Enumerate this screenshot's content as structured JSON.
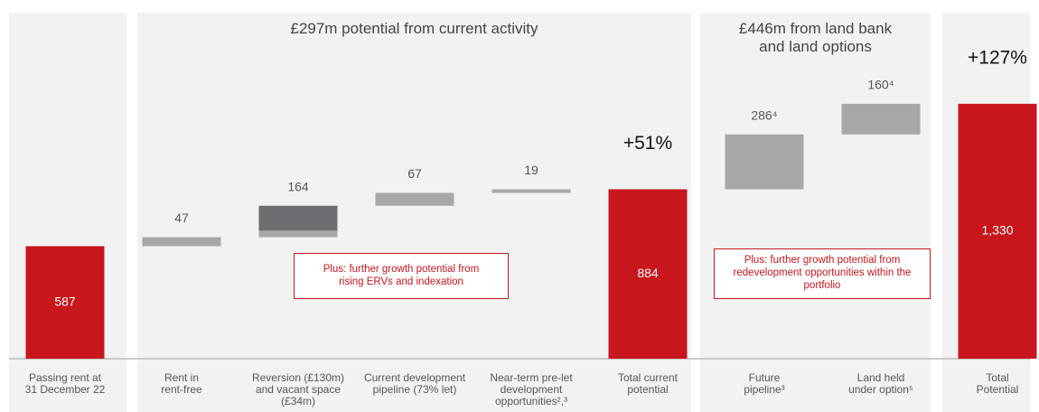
{
  "chart_data": {
    "type": "waterfall",
    "groups": [
      {
        "title": "£297m potential from current activity"
      },
      {
        "title": "£446m from land bank\nand land options"
      }
    ],
    "categories": [
      "Passing rent at\n31 December 22",
      "Rent in\nrent-free",
      "Reversion (£130m)\nand  vacant space\n(£34m)",
      "Current development\npipeline (73% let)",
      "Near-term pre-let\ndevelopment\nopportunities²,³",
      "Total current\npotential",
      "Future\npipeline³",
      "Land held\nunder option⁵",
      "Total\nPotential"
    ],
    "bar_kinds": [
      "total",
      "step",
      "step",
      "step",
      "step",
      "total",
      "step",
      "step",
      "total"
    ],
    "values": [
      587,
      47,
      164,
      67,
      19,
      884,
      286,
      160,
      1330
    ],
    "value_labels": [
      "587",
      "47",
      "164",
      "67",
      "19",
      "884",
      "286⁴",
      "160⁴",
      "1,330"
    ],
    "segments": [
      null,
      null,
      [
        34,
        130
      ],
      null,
      null,
      null,
      null,
      null,
      null
    ],
    "segment_colors": [
      "#a7a8aa",
      "#6d6e71"
    ],
    "pct_labels": [
      null,
      null,
      null,
      null,
      null,
      "+51%",
      null,
      null,
      "+127%"
    ],
    "colors": {
      "total": "#c8161d",
      "step": "#a7a8aa"
    },
    "ylim": [
      0,
      1400
    ],
    "annotations": [
      "Plus: further growth potential from\nrising ERVs and indexation",
      "Plus: further growth potential from\nredevelopment opportunities within the\nportfolio"
    ]
  }
}
